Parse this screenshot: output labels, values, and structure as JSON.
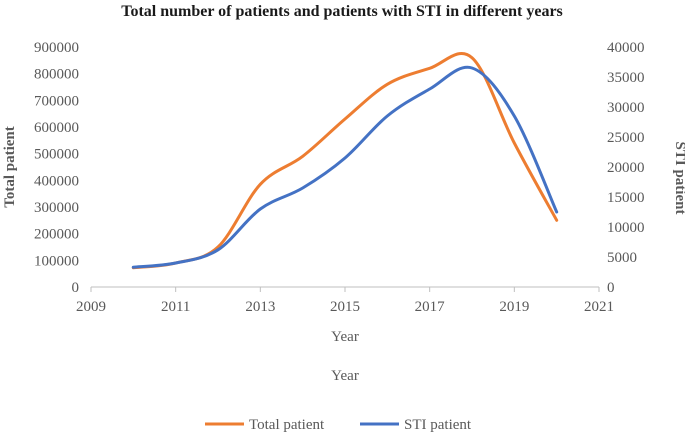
{
  "chart_data": {
    "type": "line",
    "title": "Total number of patients and patients with STI in different years",
    "xlabel": "Year",
    "xlabel_secondary": "Year",
    "ylabel": "Total patient",
    "y2label": "STI patient",
    "xlim": [
      2009,
      2021
    ],
    "xticks": [
      "2009",
      "2011",
      "2013",
      "2015",
      "2017",
      "2019",
      "2021"
    ],
    "ylim": [
      0,
      900000
    ],
    "yticks": [
      "0",
      "100000",
      "200000",
      "300000",
      "400000",
      "500000",
      "600000",
      "700000",
      "800000",
      "900000"
    ],
    "y2lim": [
      0,
      40000
    ],
    "y2ticks": [
      "0",
      "5000",
      "10000",
      "15000",
      "20000",
      "25000",
      "30000",
      "35000",
      "40000"
    ],
    "grid": false,
    "legend": "bottom",
    "series": [
      {
        "name": "Total patient",
        "axis": "left",
        "color": "#ED7D31",
        "x": [
          2010,
          2011,
          2012,
          2013,
          2014,
          2015,
          2016,
          2017,
          2018,
          2019,
          2020
        ],
        "values": [
          72000,
          90000,
          150000,
          385000,
          490000,
          630000,
          760000,
          820000,
          860000,
          540000,
          250000
        ]
      },
      {
        "name": "STI patient",
        "axis": "right",
        "color": "#4472C4",
        "x": [
          2010,
          2011,
          2012,
          2013,
          2014,
          2015,
          2016,
          2017,
          2018,
          2019,
          2020
        ],
        "values": [
          3300,
          4000,
          6200,
          13000,
          16500,
          21500,
          28500,
          33000,
          36500,
          28500,
          12500
        ]
      }
    ]
  }
}
